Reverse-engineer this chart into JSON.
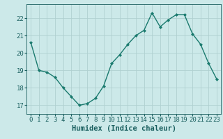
{
  "xlabel": "Humidex (Indice chaleur)",
  "x": [
    0,
    1,
    2,
    3,
    4,
    5,
    6,
    7,
    8,
    9,
    10,
    11,
    12,
    13,
    14,
    15,
    16,
    17,
    18,
    19,
    20,
    21,
    22,
    23
  ],
  "y": [
    20.6,
    19.0,
    18.9,
    18.6,
    18.0,
    17.5,
    17.0,
    17.1,
    17.4,
    18.1,
    19.4,
    19.9,
    20.5,
    21.0,
    21.3,
    22.3,
    21.5,
    21.9,
    22.2,
    22.2,
    21.1,
    20.5,
    19.4,
    18.5
  ],
  "line_color": "#1a7a6e",
  "marker": "D",
  "marker_size": 2.0,
  "bg_color": "#cce9e9",
  "grid_color": "#b0d0d0",
  "text_color": "#1a5f5f",
  "ylim": [
    16.5,
    22.8
  ],
  "yticks": [
    17,
    18,
    19,
    20,
    21,
    22
  ],
  "xlim": [
    -0.5,
    23.5
  ],
  "xticks": [
    0,
    1,
    2,
    3,
    4,
    5,
    6,
    7,
    8,
    9,
    10,
    11,
    12,
    13,
    14,
    15,
    16,
    17,
    18,
    19,
    20,
    21,
    22,
    23
  ],
  "xlabel_fontsize": 7.5,
  "tick_fontsize": 6.5,
  "line_width": 1.0
}
